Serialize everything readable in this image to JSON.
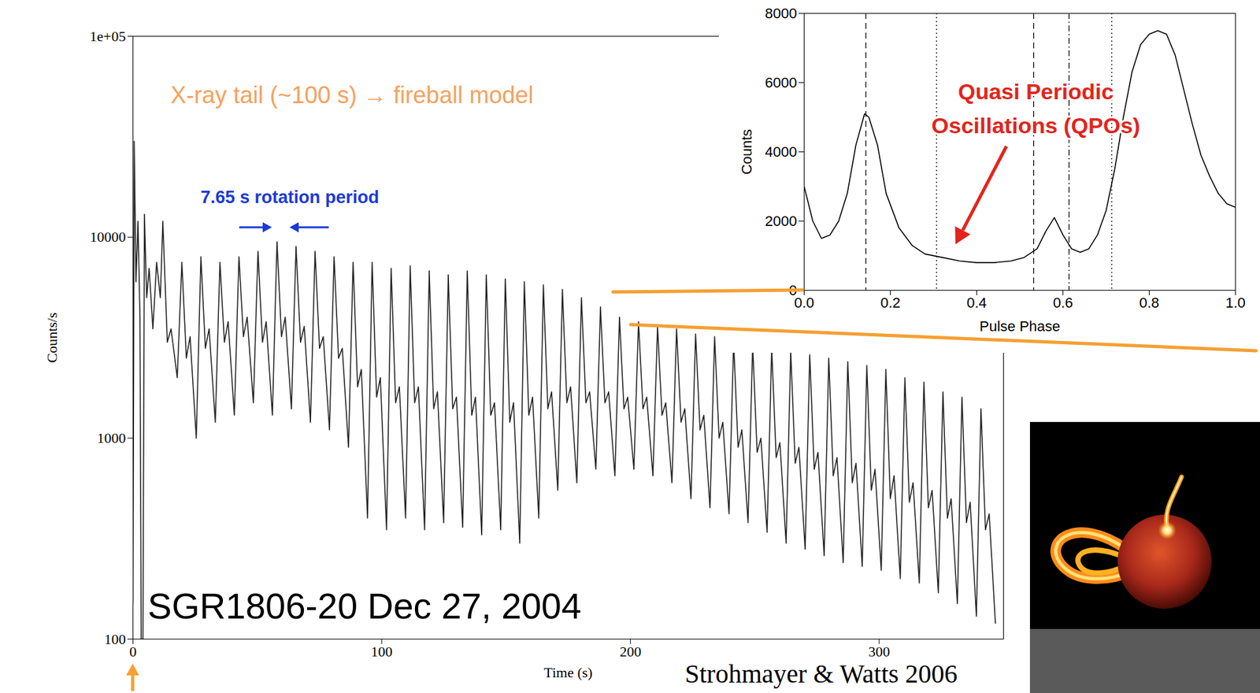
{
  "chart_data": [
    {
      "type": "line",
      "x_label": "Time (s)",
      "y_label": "Counts/s",
      "log": "y",
      "grid": false,
      "color": "#222222",
      "xlim": [
        0,
        350
      ],
      "xticks": [
        0,
        100,
        200,
        300
      ],
      "ylim": [
        100,
        100000
      ],
      "yticks": [
        100,
        1000,
        10000,
        {
          "value": 100000,
          "label": "1e+05"
        }
      ],
      "annotations": [
        {
          "text": "X-ray tail (~100 s) → fireball model",
          "color": "#f5a25d"
        },
        {
          "text": "7.65 s rotation period",
          "color": "#1a3ad8"
        },
        {
          "text": "SGR1806-20 Dec 27, 2004",
          "color": "#000000"
        },
        {
          "text": "Strohmayer & Watts 2006",
          "color": "#000000"
        }
      ],
      "x": [
        0,
        0.5,
        1.2,
        2,
        2.8,
        3.3,
        4,
        4.6,
        5.5,
        6.5,
        8,
        9.5,
        11,
        12,
        13.8,
        15.3,
        17.8,
        19.65,
        21.45,
        22.95,
        25.45,
        27.3,
        29.1,
        30.6,
        33.1,
        34.95,
        36.75,
        38.25,
        40.75,
        42.6,
        44.4,
        45.9,
        48.4,
        50.25,
        52.05,
        53.55,
        56.05,
        57.9,
        59.7,
        61.2,
        63.7,
        65.55,
        67.35,
        68.85,
        71.35,
        73.2,
        75,
        76.5,
        79,
        80.85,
        82.65,
        84.15,
        86.65,
        88.5,
        90.3,
        91.8,
        94.3,
        96.15,
        97.95,
        99.45,
        101.95,
        103.8,
        105.6,
        107.1,
        109.6,
        111.45,
        113.25,
        114.75,
        117.25,
        119.1,
        120.9,
        122.4,
        124.9,
        126.75,
        128.55,
        130.05,
        132.55,
        134.4,
        136.2,
        137.7,
        140.2,
        142.05,
        143.85,
        145.35,
        147.85,
        149.7,
        151.5,
        153,
        155.5,
        157.35,
        159.15,
        160.65,
        163.15,
        165,
        166.8,
        168.3,
        170.8,
        172.65,
        174.45,
        175.95,
        178.45,
        180.3,
        182.1,
        183.6,
        186.1,
        187.95,
        189.75,
        191.25,
        193.75,
        195.6,
        197.4,
        198.9,
        201.4,
        203.25,
        205.05,
        206.55,
        209.05,
        210.9,
        212.7,
        214.2,
        216.7,
        218.55,
        220.35,
        221.85,
        224.35,
        226.2,
        228,
        229.5,
        232,
        233.85,
        235.65,
        237.15,
        239.65,
        241.5,
        243.3,
        244.8,
        247.3,
        249.15,
        250.95,
        252.45,
        254.95,
        256.8,
        258.6,
        260.1,
        262.6,
        264.45,
        266.25,
        267.75,
        270.25,
        272.1,
        273.9,
        275.4,
        277.9,
        279.75,
        281.55,
        283.05,
        285.55,
        287.4,
        289.2,
        290.7,
        293.2,
        295.05,
        296.85,
        298.35,
        300.85,
        302.7,
        304.5,
        306,
        308.5,
        310.35,
        312.15,
        313.65,
        316.15,
        318,
        319.8,
        321.3,
        323.8,
        325.65,
        327.45,
        328.95,
        331.45,
        333.3,
        335.1,
        336.6,
        339.1,
        340.95,
        342.75,
        344.25,
        346.75
      ],
      "values": [
        150,
        30000,
        6000,
        12000,
        4000,
        100,
        100,
        13000,
        5000,
        7000,
        3500,
        7500,
        5000,
        12000,
        3000,
        3500,
        2000,
        7500,
        2500,
        3200,
        1000,
        8000,
        2800,
        3500,
        1200,
        7500,
        3000,
        3800,
        1300,
        8000,
        3200,
        4000,
        1500,
        8500,
        3000,
        3800,
        1300,
        9500,
        3200,
        4000,
        1400,
        9000,
        3000,
        3600,
        1200,
        8500,
        2800,
        3200,
        1100,
        8000,
        2500,
        2800,
        900,
        7500,
        1800,
        2200,
        400,
        7500,
        1600,
        2000,
        350,
        7000,
        1500,
        1800,
        400,
        7200,
        1500,
        1800,
        350,
        6800,
        1400,
        1700,
        380,
        6500,
        1400,
        1600,
        360,
        6800,
        1300,
        1600,
        330,
        6500,
        1300,
        1500,
        350,
        6200,
        1200,
        1500,
        300,
        6000,
        1300,
        1600,
        400,
        5800,
        1400,
        1700,
        550,
        5500,
        1500,
        1800,
        600,
        5000,
        1500,
        1700,
        700,
        4500,
        1500,
        1700,
        650,
        4000,
        1400,
        1600,
        700,
        3800,
        1400,
        1600,
        650,
        3600,
        1300,
        1500,
        600,
        3500,
        1200,
        1400,
        500,
        3300,
        1100,
        1300,
        450,
        3200,
        1000,
        1200,
        420,
        3000,
        900,
        1100,
        380,
        2900,
        850,
        1000,
        340,
        2800,
        800,
        950,
        300,
        2700,
        750,
        900,
        280,
        2600,
        700,
        850,
        260,
        2500,
        650,
        800,
        240,
        2400,
        600,
        750,
        230,
        2300,
        550,
        700,
        220,
        2200,
        500,
        650,
        200,
        2000,
        480,
        600,
        190,
        1900,
        450,
        550,
        170,
        1700,
        400,
        500,
        150,
        1600,
        380,
        480,
        130,
        1400,
        350,
        420,
        120
      ]
    },
    {
      "type": "line",
      "x_label": "Pulse Phase",
      "y_label": "Counts",
      "grid": false,
      "color": "#000000",
      "xlim": [
        0,
        1
      ],
      "xticks": [
        {
          "value": 0,
          "label": "0.0"
        },
        0.2,
        0.4,
        0.6,
        0.8,
        {
          "value": 1,
          "label": "1.0"
        }
      ],
      "ylim": [
        0,
        8000
      ],
      "yticks": [
        0,
        2000,
        4000,
        6000,
        8000
      ],
      "reference_lines": [
        {
          "x": 0.143,
          "line_style": "dashed"
        },
        {
          "x": 0.307,
          "line_style": "dotted"
        },
        {
          "x": 0.532,
          "line_style": "dashed"
        },
        {
          "x": 0.614,
          "line_style": "dashdot"
        },
        {
          "x": 0.713,
          "line_style": "dotted"
        }
      ],
      "annotations": [
        {
          "text": "Quasi Periodic Oscillations (QPOs)",
          "color": "#e3241b"
        }
      ],
      "x": [
        0,
        0.02,
        0.04,
        0.06,
        0.08,
        0.1,
        0.12,
        0.14,
        0.15,
        0.17,
        0.19,
        0.22,
        0.25,
        0.28,
        0.32,
        0.36,
        0.4,
        0.44,
        0.48,
        0.51,
        0.54,
        0.56,
        0.58,
        0.6,
        0.62,
        0.64,
        0.66,
        0.68,
        0.7,
        0.72,
        0.74,
        0.76,
        0.78,
        0.8,
        0.82,
        0.84,
        0.86,
        0.88,
        0.9,
        0.92,
        0.94,
        0.96,
        0.98,
        1
      ],
      "values": [
        3000,
        2000,
        1500,
        1600,
        2000,
        2800,
        4200,
        5100,
        5000,
        4200,
        2800,
        1800,
        1300,
        1050,
        950,
        850,
        800,
        800,
        850,
        950,
        1200,
        1700,
        2100,
        1600,
        1200,
        1100,
        1200,
        1600,
        2300,
        3500,
        5000,
        6300,
        7100,
        7400,
        7500,
        7400,
        6800,
        5800,
        4800,
        3900,
        3300,
        2800,
        2500,
        2400
      ]
    }
  ]
}
